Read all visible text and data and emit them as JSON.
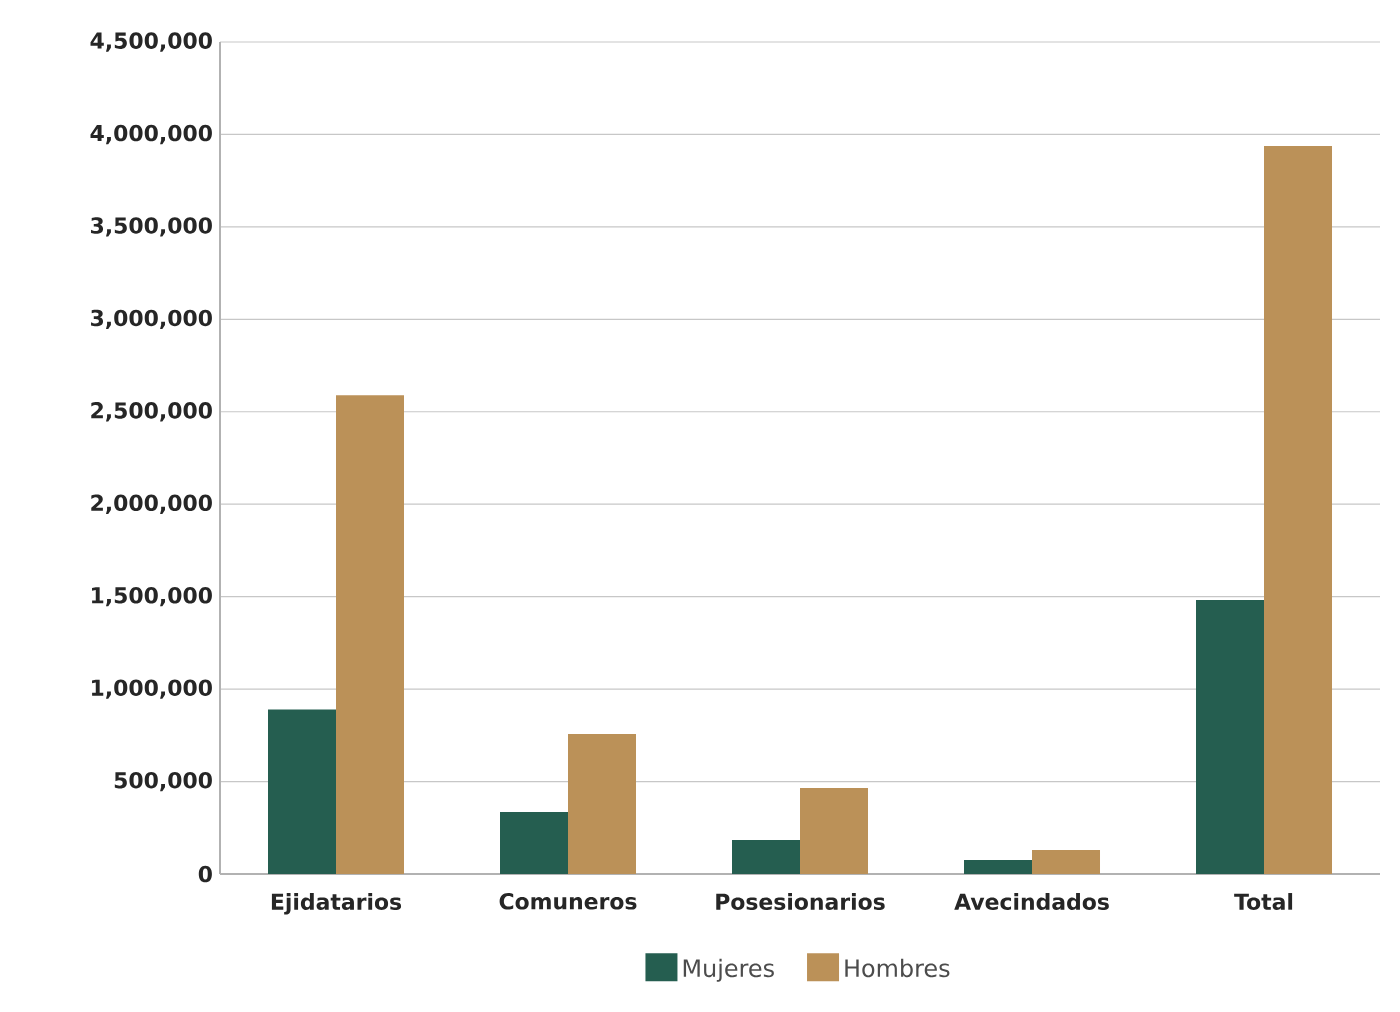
{
  "chart_data": {
    "type": "bar",
    "categories": [
      "Ejidatarios",
      "Comuneros",
      "Posesionarios",
      "Avecindados",
      "Total"
    ],
    "series": [
      {
        "name": "Mujeres",
        "color": "#255e50",
        "values": [
          890000,
          335000,
          184000,
          76000,
          1482000
        ]
      },
      {
        "name": "Hombres",
        "color": "#bb9158",
        "values": [
          2590000,
          757000,
          465000,
          130000,
          3938000
        ]
      }
    ],
    "ylim": [
      0,
      4500000
    ],
    "yticks": [
      {
        "value": 0,
        "label": "0"
      },
      {
        "value": 500000,
        "label": "500,000"
      },
      {
        "value": 1000000,
        "label": "1,000,000"
      },
      {
        "value": 1500000,
        "label": "1,500,000"
      },
      {
        "value": 2000000,
        "label": "2,000,000"
      },
      {
        "value": 2500000,
        "label": "2,500,000"
      },
      {
        "value": 3000000,
        "label": "3,000,000"
      },
      {
        "value": 3500000,
        "label": "3,500,000"
      },
      {
        "value": 4000000,
        "label": "4,000,000"
      },
      {
        "value": 4500000,
        "label": "4,500,000"
      }
    ],
    "grid": "y",
    "legend": "bottom"
  }
}
